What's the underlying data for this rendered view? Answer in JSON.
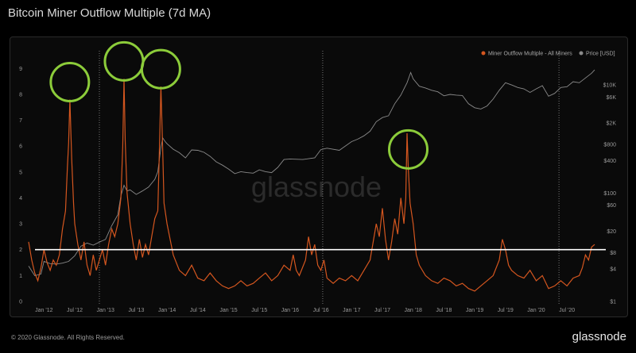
{
  "header": {
    "title": "Bitcoin Miner Outflow Multiple (7d MA)"
  },
  "footer": {
    "copyright": "© 2020 Glassnode. All Rights Reserved.",
    "brand": "glassnode"
  },
  "watermark": "glassnode",
  "colors": {
    "outflow": "#d4561f",
    "price": "#8a8a8a",
    "threshold": "#ffffff",
    "highlight": "#8ccc3a"
  },
  "chart_data": {
    "type": "line",
    "title": "Bitcoin Miner Outflow Multiple (7d MA)",
    "legend": [
      "Miner Outflow Multiple - All Miners",
      "Price [USD]"
    ],
    "legend_position": "top-right",
    "left_axis": {
      "ticks": [
        0,
        1,
        2,
        3,
        4,
        5,
        6,
        7,
        8,
        9
      ],
      "ylim": [
        0,
        9.5
      ]
    },
    "right_axis": {
      "scale": "log",
      "ticks": [
        "$1",
        "$4",
        "$8",
        "$20",
        "$60",
        "$100",
        "$400",
        "$800",
        "$2K",
        "$6K",
        "$10K"
      ]
    },
    "x_ticks": [
      "Jan '12",
      "Jul '12",
      "Jan '13",
      "Jul '13",
      "Jan '14",
      "Jul '14",
      "Jan '15",
      "Jul '15",
      "Jan '16",
      "Jul '16",
      "Jan '17",
      "Jul '17",
      "Jan '18",
      "Jul '18",
      "Jan '19",
      "Jul '19",
      "Jan '20",
      "Jul '20"
    ],
    "xlim": [
      2011.75,
      2020.95
    ],
    "halving_lines": [
      2012.9,
      2016.53,
      2020.37
    ],
    "threshold": 2,
    "grid": false,
    "series": [
      {
        "name": "Miner Outflow Multiple - All Miners",
        "axis": "left",
        "x": [
          2011.75,
          2011.8,
          2011.85,
          2011.9,
          2011.95,
          2012.0,
          2012.05,
          2012.1,
          2012.15,
          2012.2,
          2012.25,
          2012.3,
          2012.35,
          2012.38,
          2012.4,
          2012.42,
          2012.45,
          2012.48,
          2012.5,
          2012.55,
          2012.6,
          2012.65,
          2012.7,
          2012.75,
          2012.8,
          2012.85,
          2012.9,
          2012.95,
          2013.0,
          2013.05,
          2013.1,
          2013.15,
          2013.2,
          2013.25,
          2013.28,
          2013.3,
          2013.32,
          2013.35,
          2013.4,
          2013.45,
          2013.5,
          2013.55,
          2013.6,
          2013.65,
          2013.7,
          2013.75,
          2013.8,
          2013.85,
          2013.88,
          2013.9,
          2013.93,
          2013.95,
          2014.0,
          2014.05,
          2014.1,
          2014.2,
          2014.3,
          2014.4,
          2014.5,
          2014.6,
          2014.7,
          2014.8,
          2014.9,
          2015.0,
          2015.1,
          2015.2,
          2015.3,
          2015.4,
          2015.5,
          2015.6,
          2015.7,
          2015.8,
          2015.9,
          2016.0,
          2016.05,
          2016.1,
          2016.15,
          2016.2,
          2016.25,
          2016.3,
          2016.35,
          2016.4,
          2016.45,
          2016.5,
          2016.55,
          2016.6,
          2016.7,
          2016.8,
          2016.9,
          2017.0,
          2017.1,
          2017.2,
          2017.3,
          2017.4,
          2017.45,
          2017.5,
          2017.55,
          2017.6,
          2017.65,
          2017.7,
          2017.75,
          2017.8,
          2017.85,
          2017.88,
          2017.9,
          2017.92,
          2017.95,
          2018.0,
          2018.05,
          2018.1,
          2018.2,
          2018.3,
          2018.4,
          2018.5,
          2018.6,
          2018.7,
          2018.8,
          2018.9,
          2019.0,
          2019.1,
          2019.2,
          2019.3,
          2019.4,
          2019.45,
          2019.5,
          2019.55,
          2019.6,
          2019.7,
          2019.8,
          2019.9,
          2020.0,
          2020.1,
          2020.2,
          2020.3,
          2020.4,
          2020.5,
          2020.6,
          2020.7,
          2020.75,
          2020.8,
          2020.85,
          2020.9,
          2020.95
        ],
        "values": [
          2.3,
          1.6,
          1.1,
          0.8,
          1.3,
          2.0,
          1.5,
          1.2,
          1.6,
          1.4,
          1.8,
          2.8,
          3.5,
          5.2,
          6.1,
          7.8,
          5.5,
          3.8,
          3.0,
          2.2,
          1.6,
          2.3,
          1.4,
          1.0,
          1.8,
          1.2,
          1.6,
          2.0,
          1.4,
          2.2,
          2.8,
          2.5,
          3.0,
          4.0,
          6.0,
          8.6,
          6.2,
          4.2,
          3.0,
          2.2,
          1.6,
          2.4,
          1.7,
          2.2,
          1.8,
          2.5,
          3.2,
          3.5,
          6.2,
          8.3,
          5.8,
          3.8,
          3.0,
          2.4,
          1.8,
          1.2,
          1.0,
          1.4,
          0.9,
          0.8,
          1.1,
          0.8,
          0.6,
          0.5,
          0.6,
          0.8,
          0.6,
          0.7,
          0.9,
          1.1,
          0.8,
          1.0,
          1.4,
          1.2,
          1.8,
          1.2,
          1.0,
          1.3,
          1.6,
          2.5,
          1.8,
          2.2,
          1.4,
          1.2,
          1.6,
          0.9,
          0.7,
          0.9,
          0.8,
          1.0,
          0.8,
          1.2,
          1.6,
          3.0,
          2.5,
          3.6,
          2.4,
          1.6,
          2.3,
          3.2,
          2.6,
          4.0,
          3.0,
          4.0,
          6.5,
          5.2,
          3.8,
          3.0,
          1.8,
          1.4,
          1.0,
          0.8,
          0.7,
          0.9,
          0.8,
          0.6,
          0.7,
          0.5,
          0.4,
          0.6,
          0.8,
          1.0,
          1.6,
          2.4,
          2.0,
          1.4,
          1.2,
          1.0,
          0.9,
          1.2,
          0.8,
          1.0,
          0.5,
          0.6,
          0.8,
          0.6,
          0.9,
          1.0,
          1.3,
          1.8,
          1.6,
          2.1,
          2.2
        ]
      },
      {
        "name": "Price [USD]",
        "axis": "right",
        "x": [
          2011.75,
          2011.85,
          2011.95,
          2012.0,
          2012.1,
          2012.2,
          2012.3,
          2012.4,
          2012.5,
          2012.6,
          2012.7,
          2012.8,
          2012.9,
          2013.0,
          2013.1,
          2013.2,
          2013.25,
          2013.3,
          2013.35,
          2013.4,
          2013.5,
          2013.6,
          2013.7,
          2013.8,
          2013.85,
          2013.9,
          2013.93,
          2013.97,
          2014.0,
          2014.1,
          2014.2,
          2014.3,
          2014.4,
          2014.5,
          2014.6,
          2014.7,
          2014.8,
          2014.9,
          2015.0,
          2015.1,
          2015.2,
          2015.3,
          2015.4,
          2015.5,
          2015.6,
          2015.7,
          2015.8,
          2015.9,
          2016.0,
          2016.2,
          2016.4,
          2016.5,
          2016.6,
          2016.8,
          2017.0,
          2017.1,
          2017.2,
          2017.3,
          2017.4,
          2017.5,
          2017.6,
          2017.7,
          2017.8,
          2017.9,
          2017.96,
          2018.0,
          2018.1,
          2018.2,
          2018.3,
          2018.4,
          2018.5,
          2018.6,
          2018.7,
          2018.8,
          2018.9,
          2019.0,
          2019.1,
          2019.2,
          2019.3,
          2019.4,
          2019.5,
          2019.6,
          2019.7,
          2019.8,
          2019.9,
          2020.0,
          2020.1,
          2020.2,
          2020.3,
          2020.4,
          2020.5,
          2020.6,
          2020.7,
          2020.8,
          2020.9,
          2020.95
        ],
        "values": [
          4.5,
          3.0,
          3.2,
          5.5,
          5.0,
          4.9,
          5.1,
          5.5,
          7.0,
          10.5,
          12,
          11,
          12.5,
          14,
          25,
          40,
          90,
          140,
          110,
          115,
          95,
          110,
          130,
          180,
          250,
          700,
          1050,
          900,
          820,
          650,
          560,
          450,
          630,
          620,
          570,
          480,
          380,
          330,
          280,
          230,
          250,
          240,
          235,
          270,
          250,
          240,
          300,
          420,
          430,
          420,
          450,
          640,
          680,
          620,
          900,
          1000,
          1150,
          1400,
          2100,
          2500,
          2700,
          4500,
          6500,
          11000,
          17000,
          13000,
          9500,
          8800,
          8000,
          7500,
          6300,
          6700,
          6500,
          6400,
          4500,
          3800,
          3600,
          4100,
          5500,
          8000,
          11000,
          10000,
          9000,
          8500,
          7300,
          8500,
          9700,
          6200,
          7000,
          9000,
          9300,
          11500,
          11000,
          13500,
          16500,
          19000
        ]
      }
    ],
    "highlighted_peaks": [
      2012.42,
      2013.3,
      2013.9,
      2017.92
    ]
  }
}
